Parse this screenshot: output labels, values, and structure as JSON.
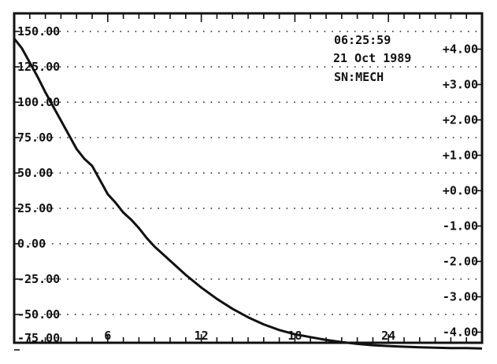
{
  "header": {
    "time": "06:25:59",
    "date": "21 Oct 1989",
    "sn": "SN:MECH"
  },
  "chart_data": {
    "type": "line",
    "x_ticks": [
      "6",
      "12",
      "18",
      "24"
    ],
    "xlim": [
      0,
      30
    ],
    "y_left_ticks": [
      "150.00",
      "125.00",
      "100.00",
      "75.00",
      "50.00",
      "25.00",
      "0.00",
      "-25.00",
      "-50.00",
      "-75.00"
    ],
    "ylim_left": [
      -75,
      150
    ],
    "y_right_ticks": [
      "+4.00",
      "+3.00",
      "+2.00",
      "+1.00",
      "+0.00",
      "-1.00",
      "-2.00",
      "-3.00",
      "-4.00"
    ],
    "ylim_right": [
      -4.5,
      4.5
    ],
    "grid": true,
    "series": [
      {
        "x": [
          0,
          0.5,
          1,
          1.5,
          2,
          2.5,
          3,
          3.5,
          4,
          4.5,
          5,
          5.5,
          6,
          6.5,
          7,
          7.5,
          8,
          8.5,
          9,
          9.5,
          10,
          11,
          12,
          13,
          14,
          15,
          16,
          17,
          18,
          19,
          20,
          21,
          22,
          23,
          24,
          25,
          26,
          27,
          28,
          29,
          30
        ],
        "y": [
          145,
          138,
          128,
          118,
          107,
          97,
          87,
          77,
          67,
          60,
          55,
          45,
          35,
          29,
          22,
          17,
          11,
          4,
          -2,
          -7,
          -12,
          -22,
          -31,
          -39,
          -46,
          -52,
          -57,
          -61,
          -64,
          -66,
          -68,
          -69.5,
          -70.8,
          -71.7,
          -72.3,
          -72.8,
          -73.2,
          -73.5,
          -73.7,
          -73.8,
          -74
        ]
      }
    ]
  }
}
